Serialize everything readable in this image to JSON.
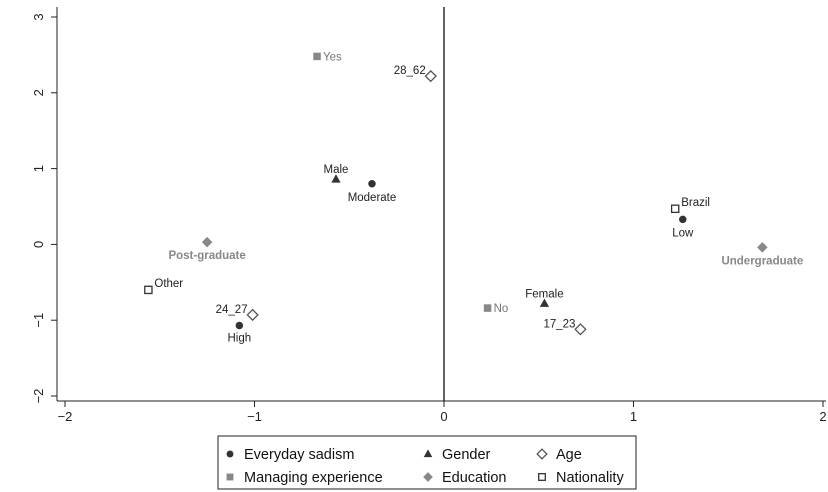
{
  "chart_data": {
    "type": "scatter",
    "xlim": [
      -2,
      2
    ],
    "ylim": [
      -2,
      3
    ],
    "x_ticks": [
      -2,
      -1,
      0,
      1,
      2
    ],
    "y_ticks": [
      -2,
      -1,
      0,
      1,
      2,
      3
    ],
    "x_tick_labels": [
      "−2",
      "−1",
      "0",
      "1",
      "2"
    ],
    "y_tick_labels": [
      "−2",
      "−1",
      "0",
      "1",
      "2",
      "3"
    ],
    "reference_lines": {
      "x": 0
    },
    "grid": false,
    "legend_position": "bottom",
    "series": [
      {
        "name": "Everyday sadism",
        "marker": "circle-filled",
        "color": "#333333",
        "points": [
          {
            "label": "Moderate",
            "x": -0.38,
            "y": 0.8
          },
          {
            "label": "Low",
            "x": 1.26,
            "y": 0.33
          },
          {
            "label": "High",
            "x": -1.08,
            "y": -1.07
          }
        ]
      },
      {
        "name": "Gender",
        "marker": "triangle-filled",
        "color": "#333333",
        "points": [
          {
            "label": "Male",
            "x": -0.57,
            "y": 0.86
          },
          {
            "label": "Female",
            "x": 0.53,
            "y": -0.78
          }
        ]
      },
      {
        "name": "Age",
        "marker": "diamond-hollow",
        "color": "#555555",
        "points": [
          {
            "label": "28_62",
            "x": -0.07,
            "y": 2.22
          },
          {
            "label": "24_27",
            "x": -1.01,
            "y": -0.93
          },
          {
            "label": "17_23",
            "x": 0.72,
            "y": -1.12
          }
        ]
      },
      {
        "name": "Managing experience",
        "marker": "square-filled",
        "color": "#888888",
        "points": [
          {
            "label": "Yes",
            "x": -0.67,
            "y": 2.48
          },
          {
            "label": "No",
            "x": 0.23,
            "y": -0.84
          }
        ]
      },
      {
        "name": "Education",
        "marker": "diamond-filled",
        "color": "#888888",
        "points": [
          {
            "label": "Post-graduate",
            "x": -1.25,
            "y": 0.03
          },
          {
            "label": "Undergraduate",
            "x": 1.68,
            "y": -0.04
          }
        ]
      },
      {
        "name": "Nationality",
        "marker": "square-hollow",
        "color": "#333333",
        "points": [
          {
            "label": "Brazil",
            "x": 1.22,
            "y": 0.47
          },
          {
            "label": "Other",
            "x": -1.56,
            "y": -0.6
          }
        ]
      }
    ],
    "legend": [
      {
        "label": "Everyday sadism",
        "marker": "circle-filled",
        "color": "#333333"
      },
      {
        "label": "Gender",
        "marker": "triangle-filled",
        "color": "#333333"
      },
      {
        "label": "Age",
        "marker": "diamond-hollow",
        "color": "#555555"
      },
      {
        "label": "Managing experience",
        "marker": "square-filled",
        "color": "#888888"
      },
      {
        "label": "Education",
        "marker": "diamond-filled",
        "color": "#888888"
      },
      {
        "label": "Nationality",
        "marker": "square-hollow",
        "color": "#333333"
      }
    ]
  }
}
